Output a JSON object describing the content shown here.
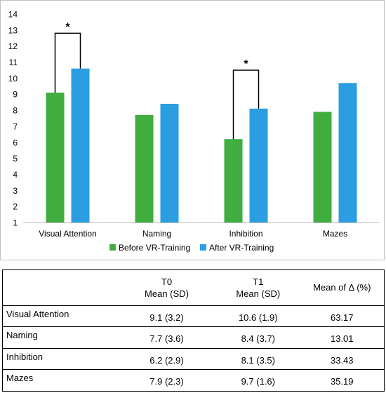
{
  "colors": {
    "before": "#3fae3f",
    "after": "#2a9ee0",
    "axis": "#000000",
    "border": "#bfbfbf"
  },
  "chart_data": {
    "type": "bar",
    "categories": [
      "Visual Attention",
      "Naming",
      "Inhibition",
      "Mazes"
    ],
    "series": [
      {
        "name": "Before VR-Training",
        "values": [
          9.1,
          7.7,
          6.2,
          7.9
        ]
      },
      {
        "name": "After VR-Training",
        "values": [
          10.6,
          8.4,
          8.1,
          9.7
        ]
      }
    ],
    "yticks": [
      1,
      2,
      3,
      4,
      5,
      6,
      7,
      8,
      9,
      10,
      11,
      12,
      13,
      14
    ],
    "ylim": [
      1,
      14
    ],
    "title": "",
    "xlabel": "",
    "ylabel": "",
    "grid": false,
    "legend_position": "bottom",
    "significance": [
      {
        "category": "Visual Attention",
        "label": "*",
        "bracket_top": 12.8
      },
      {
        "category": "Inhibition",
        "label": "*",
        "bracket_top": 10.5
      }
    ]
  },
  "table": {
    "headers": {
      "t0_line1": "T0",
      "t0_line2": "Mean (SD)",
      "t1_line1": "T1",
      "t1_line2": "Mean (SD)",
      "delta": "Mean of Δ (%)"
    },
    "rows": [
      {
        "name": "Visual Attention",
        "t0": "9.1 (3.2)",
        "t1": "10.6 (1.9)",
        "delta": "63.17"
      },
      {
        "name": "Naming",
        "t0": "7.7 (3.6)",
        "t1": "8.4 (3.7)",
        "delta": "13.01"
      },
      {
        "name": "Inhibition",
        "t0": "6.2 (2.9)",
        "t1": "8.1 (3.5)",
        "delta": "33.43"
      },
      {
        "name": "Mazes",
        "t0": "7.9 (2.3)",
        "t1": "9.7 (1.6)",
        "delta": "35.19"
      }
    ]
  }
}
